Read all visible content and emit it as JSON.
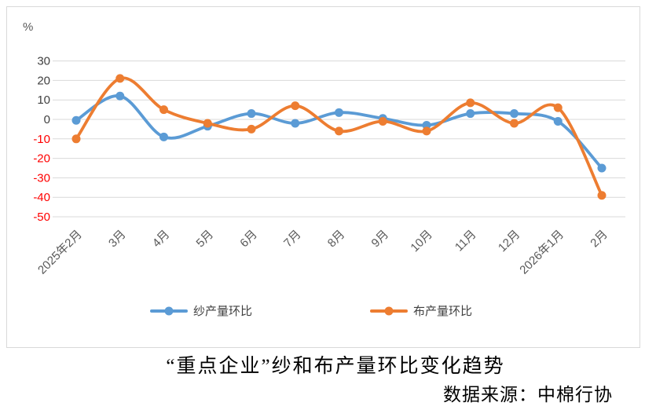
{
  "percent_label": "%",
  "title": "“重点企业”纱和布产量环比变化趋势",
  "source": "数据来源：中棉行协",
  "chart_data": {
    "type": "line",
    "categories": [
      "2025年2月",
      "3月",
      "4月",
      "5月",
      "6月",
      "7月",
      "8月",
      "9月",
      "10月",
      "11月",
      "12月",
      "2026年1月",
      "2月"
    ],
    "series": [
      {
        "name": "纱产量环比",
        "color": "#5B9BD5",
        "values": [
          -0.5,
          12,
          -9,
          -3.5,
          3,
          -2,
          3.5,
          0.5,
          -3,
          3,
          3,
          -1,
          -25
        ]
      },
      {
        "name": "布产量环比",
        "color": "#ED7D31",
        "values": [
          -10,
          21,
          5,
          -2,
          -5,
          7,
          -6,
          -1,
          -6,
          8.5,
          -2,
          6,
          -39
        ]
      }
    ],
    "xlabel": "",
    "ylabel": "%",
    "ylim": [
      -50,
      30
    ],
    "y_ticks": [
      30,
      20,
      10,
      0,
      -10,
      -20,
      -30,
      -40,
      -50
    ],
    "grid": true,
    "legend_position": "bottom",
    "smoothed_lines": true,
    "marker": "circle"
  },
  "colors": {
    "positive_tick": "#404040",
    "negative_tick": "#FF0000",
    "gridline": "#D9D9D9",
    "axis_label": "#595959",
    "frame_border": "#D9D9D9"
  }
}
